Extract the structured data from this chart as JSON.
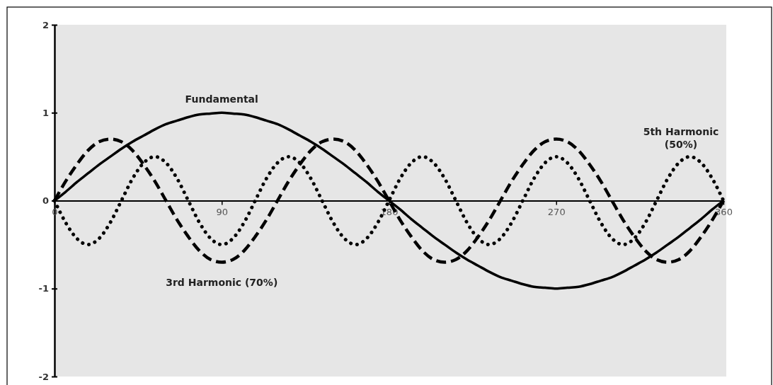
{
  "chart_data": {
    "type": "line",
    "x": [
      0,
      6,
      12,
      18,
      24,
      30,
      36,
      42,
      48,
      54,
      60,
      66,
      72,
      78,
      84,
      90,
      96,
      102,
      108,
      114,
      120,
      126,
      132,
      138,
      144,
      150,
      156,
      162,
      168,
      174,
      180,
      186,
      192,
      198,
      204,
      210,
      216,
      222,
      228,
      234,
      240,
      246,
      252,
      258,
      264,
      270,
      276,
      282,
      288,
      294,
      300,
      306,
      312,
      318,
      324,
      330,
      336,
      342,
      348,
      354,
      360
    ],
    "xlim": [
      0,
      360
    ],
    "xticks": [
      0,
      90,
      180,
      270,
      360
    ],
    "ylim": [
      -2,
      2
    ],
    "yticks": [
      -2,
      -1,
      0,
      1,
      2
    ],
    "series": [
      {
        "name": "Fundamental",
        "color": "#000000",
        "line_style": "solid",
        "values": [
          0,
          0.1,
          0.21,
          0.31,
          0.41,
          0.5,
          0.59,
          0.67,
          0.74,
          0.81,
          0.87,
          0.91,
          0.95,
          0.98,
          0.99,
          1,
          0.99,
          0.98,
          0.95,
          0.91,
          0.87,
          0.81,
          0.74,
          0.67,
          0.59,
          0.5,
          0.41,
          0.31,
          0.21,
          0.1,
          0,
          -0.1,
          -0.21,
          -0.31,
          -0.41,
          -0.5,
          -0.59,
          -0.67,
          -0.74,
          -0.81,
          -0.87,
          -0.91,
          -0.95,
          -0.98,
          -0.99,
          -1,
          -0.99,
          -0.98,
          -0.95,
          -0.91,
          -0.87,
          -0.81,
          -0.74,
          -0.67,
          -0.59,
          -0.5,
          -0.41,
          -0.31,
          -0.21,
          -0.1,
          0
        ]
      },
      {
        "name": "3rd Harmonic (70%)",
        "color": "#000000",
        "line_style": "dashed",
        "values": [
          0,
          0.22,
          0.41,
          0.57,
          0.67,
          0.7,
          0.67,
          0.57,
          0.41,
          0.22,
          0,
          -0.22,
          -0.41,
          -0.57,
          -0.67,
          -0.7,
          -0.67,
          -0.57,
          -0.41,
          -0.22,
          0,
          0.22,
          0.41,
          0.57,
          0.67,
          0.7,
          0.67,
          0.57,
          0.41,
          0.22,
          0,
          -0.22,
          -0.41,
          -0.57,
          -0.67,
          -0.7,
          -0.67,
          -0.57,
          -0.41,
          -0.22,
          0,
          0.22,
          0.41,
          0.57,
          0.67,
          0.7,
          0.67,
          0.57,
          0.41,
          0.22,
          0,
          -0.22,
          -0.41,
          -0.57,
          -0.67,
          -0.7,
          -0.67,
          -0.57,
          -0.41,
          -0.22,
          0
        ]
      },
      {
        "name": "5th Harmonic (50%)",
        "color": "#000000",
        "line_style": "dotted",
        "values": [
          0,
          -0.25,
          -0.43,
          -0.5,
          -0.43,
          -0.25,
          0,
          0.25,
          0.43,
          0.5,
          0.43,
          0.25,
          0,
          -0.25,
          -0.43,
          -0.5,
          -0.43,
          -0.25,
          0,
          0.25,
          0.43,
          0.5,
          0.43,
          0.25,
          0,
          -0.25,
          -0.43,
          -0.5,
          -0.43,
          -0.25,
          0,
          0.25,
          0.43,
          0.5,
          0.43,
          0.25,
          0,
          -0.25,
          -0.43,
          -0.5,
          -0.43,
          -0.25,
          0,
          0.25,
          0.43,
          0.5,
          0.43,
          0.25,
          0,
          -0.25,
          -0.43,
          -0.5,
          -0.43,
          -0.25,
          0,
          0.25,
          0.43,
          0.5,
          0.43,
          0.25,
          0
        ]
      }
    ]
  }
}
